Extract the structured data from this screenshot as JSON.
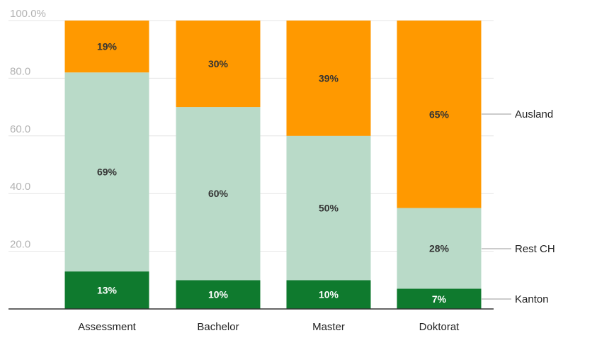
{
  "chart_data": {
    "type": "bar",
    "stacked": true,
    "orientation": "vertical",
    "categories": [
      "Assessment",
      "Bachelor",
      "Master",
      "Doktorat"
    ],
    "series": [
      {
        "name": "Kanton",
        "values": [
          13,
          10,
          10,
          7
        ],
        "labels": [
          "13%",
          "10%",
          "10%",
          "7%"
        ],
        "color": "#0f7a2e",
        "label_color": "#ffffff"
      },
      {
        "name": "Rest CH",
        "values": [
          69,
          60,
          50,
          28
        ],
        "labels": [
          "69%",
          "60%",
          "50%",
          "28%"
        ],
        "color": "#b9dac8",
        "label_color": "#333333"
      },
      {
        "name": "Ausland",
        "values": [
          19,
          30,
          39,
          65
        ],
        "labels": [
          "19%",
          "30%",
          "39%",
          "65%"
        ],
        "color": "#ff9900",
        "label_color": "#333333"
      }
    ],
    "y_ticks": [
      "100.0%",
      "80.0",
      "60.0",
      "40.0",
      "20.0"
    ],
    "y_tick_values": [
      100,
      80,
      60,
      40,
      20
    ],
    "ylim": [
      0,
      100
    ],
    "grid": true,
    "legend": "right, leader lines to Doktorat bar",
    "title": "",
    "xlabel": "",
    "ylabel": ""
  }
}
